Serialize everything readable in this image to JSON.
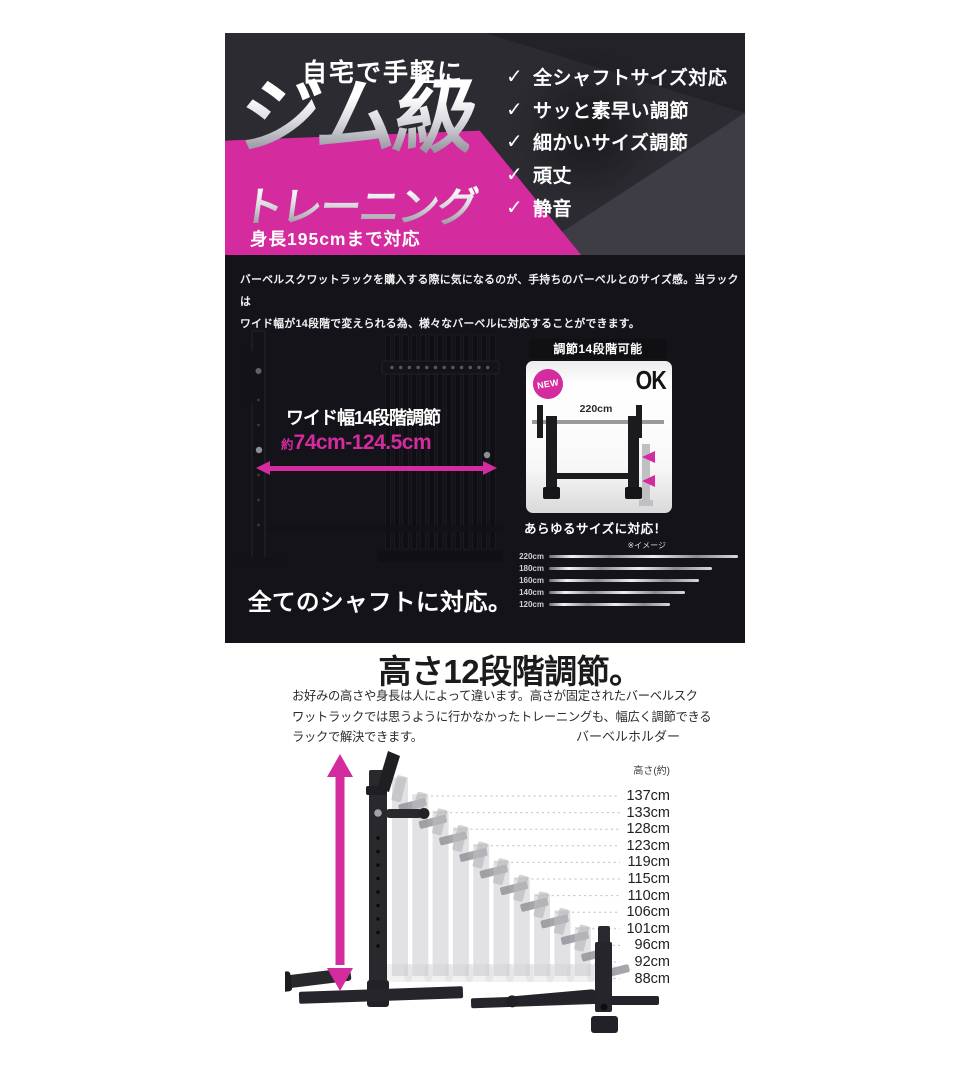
{
  "colors": {
    "accent_magenta": "#d42b9e",
    "hero_bg": "#2c2b31",
    "section_bg": "#141319"
  },
  "hero": {
    "tagline": "自宅で手軽に",
    "title": "ジム級",
    "subtitle": "トレーニング",
    "height_support": "身長195cmまで対応",
    "checkmark": "✓",
    "features": [
      "全シャフトサイズ対応",
      "サッと素早い調節",
      "細かいサイズ調節",
      "頑丈",
      "静音"
    ]
  },
  "width_section": {
    "intro": "バーベルスクワットラックを購入する際に気になるのが、手持ちのバーベルとのサイズ感。当ラックは\nワイド幅が14段階で変えられる為、様々なバーベルに対応することができます。",
    "wide_label": "ワイド幅14段階調節",
    "range_prefix": "約",
    "range_value": "74cm-124.5cm",
    "card": {
      "header": "調節14段階可能",
      "badge": "NEW",
      "ok_label": "OK",
      "bar_length": "220cm",
      "caption": "あらゆるサイズに対応！",
      "note": "※イメージ"
    },
    "shafts": [
      {
        "label": "220cm",
        "length": 189
      },
      {
        "label": "180cm",
        "length": 163
      },
      {
        "label": "160cm",
        "length": 150
      },
      {
        "label": "140cm",
        "length": 136
      },
      {
        "label": "120cm",
        "length": 121
      }
    ],
    "footer": "全てのシャフトに対応。"
  },
  "height_section": {
    "heading": "高さ12段階調節。",
    "body": "お好みの高さや身長は人によって違います。高さが固定されたバーベルスク\nワットラックでは思うように行かなかったトレーニングも、幅広く調節できる\nラックで解決できます。",
    "holder_label": "バーベルホルダー",
    "column_label": "高さ(約)",
    "heights": [
      "137cm",
      "133cm",
      "128cm",
      "123cm",
      "119cm",
      "115cm",
      "110cm",
      "106cm",
      "101cm",
      "96cm",
      "92cm",
      "88cm"
    ]
  }
}
